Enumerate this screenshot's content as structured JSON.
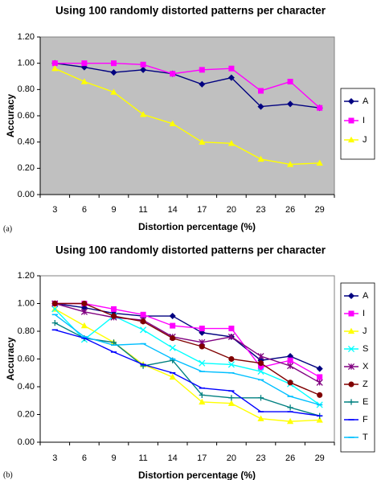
{
  "chart_data": [
    {
      "type": "line",
      "panel_label": "(a)",
      "title": "Using 100 randomly distorted patterns per character",
      "xlabel": "Distortion percentage (%)",
      "ylabel": "Accuracy",
      "categories": [
        "3",
        "6",
        "9",
        "11",
        "14",
        "17",
        "20",
        "23",
        "26",
        "29"
      ],
      "ylim": [
        0,
        1.2
      ],
      "yticks": [
        "0.00",
        "0.20",
        "0.40",
        "0.60",
        "0.80",
        "1.00",
        "1.20"
      ],
      "grid": false,
      "plot_background": "#c0c0c0",
      "legend_position": "right",
      "series": [
        {
          "name": "A",
          "color": "#000080",
          "marker": "diamond",
          "values": [
            1.0,
            0.97,
            0.93,
            0.95,
            0.92,
            0.84,
            0.89,
            0.67,
            0.69,
            0.66
          ]
        },
        {
          "name": "I",
          "color": "#ff00ff",
          "marker": "square",
          "values": [
            1.0,
            1.0,
            1.0,
            0.99,
            0.92,
            0.95,
            0.96,
            0.79,
            0.86,
            0.66
          ]
        },
        {
          "name": "J",
          "color": "#ffff00",
          "marker": "triangle",
          "values": [
            0.96,
            0.86,
            0.78,
            0.61,
            0.54,
            0.4,
            0.39,
            0.27,
            0.23,
            0.24
          ]
        }
      ]
    },
    {
      "type": "line",
      "panel_label": "(b)",
      "title": "Using 100 randomly distorted patterns per character",
      "xlabel": "Distortion percentage (%)",
      "ylabel": "Accuracy",
      "categories": [
        "3",
        "6",
        "9",
        "11",
        "14",
        "17",
        "20",
        "23",
        "26",
        "29"
      ],
      "ylim": [
        0,
        1.2
      ],
      "yticks": [
        "0.00",
        "0.20",
        "0.40",
        "0.60",
        "0.80",
        "1.00",
        "1.20"
      ],
      "grid": false,
      "plot_background": "#ffffff",
      "legend_position": "right",
      "series": [
        {
          "name": "A",
          "color": "#000080",
          "marker": "diamond",
          "values": [
            1.0,
            0.97,
            0.93,
            0.91,
            0.91,
            0.79,
            0.76,
            0.59,
            0.62,
            0.53
          ]
        },
        {
          "name": "I",
          "color": "#ff00ff",
          "marker": "square",
          "values": [
            1.0,
            1.0,
            0.96,
            0.92,
            0.84,
            0.82,
            0.82,
            0.54,
            0.59,
            0.47
          ]
        },
        {
          "name": "J",
          "color": "#ffff00",
          "marker": "triangle",
          "values": [
            0.96,
            0.84,
            0.72,
            0.56,
            0.47,
            0.29,
            0.28,
            0.17,
            0.15,
            0.16
          ]
        },
        {
          "name": "S",
          "color": "#00ffff",
          "marker": "x",
          "values": [
            0.96,
            0.74,
            0.91,
            0.81,
            0.68,
            0.57,
            0.56,
            0.51,
            0.42,
            0.27
          ]
        },
        {
          "name": "X",
          "color": "#800080",
          "marker": "star",
          "values": [
            1.0,
            0.94,
            0.9,
            0.88,
            0.76,
            0.72,
            0.76,
            0.62,
            0.55,
            0.43
          ]
        },
        {
          "name": "Z",
          "color": "#800000",
          "marker": "circle",
          "values": [
            1.0,
            1.0,
            0.91,
            0.87,
            0.75,
            0.69,
            0.6,
            0.57,
            0.43,
            0.34
          ]
        },
        {
          "name": "E",
          "color": "#008080",
          "marker": "plus",
          "values": [
            0.86,
            0.75,
            0.72,
            0.55,
            0.59,
            0.34,
            0.32,
            0.32,
            0.25,
            0.19
          ]
        },
        {
          "name": "F",
          "color": "#0000ff",
          "marker": "dash",
          "values": [
            0.81,
            0.75,
            0.65,
            0.56,
            0.5,
            0.39,
            0.37,
            0.22,
            0.22,
            0.19
          ]
        },
        {
          "name": "T",
          "color": "#00bfff",
          "marker": "dash",
          "values": [
            0.92,
            0.76,
            0.7,
            0.71,
            0.6,
            0.51,
            0.5,
            0.45,
            0.33,
            0.27
          ]
        }
      ]
    }
  ]
}
